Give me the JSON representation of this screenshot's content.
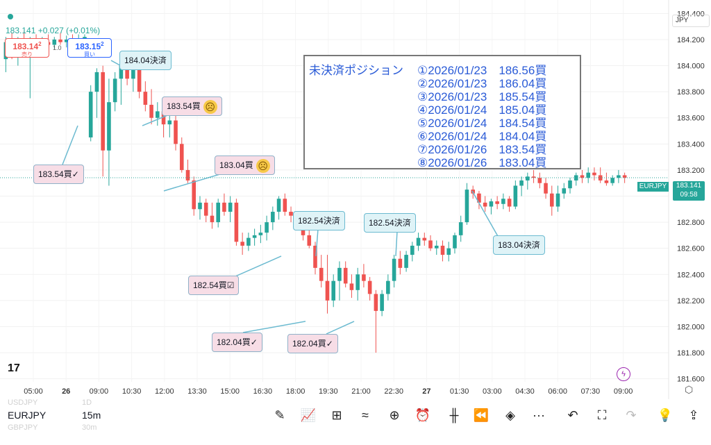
{
  "quote": {
    "price_change": "183.141 +0.027 (+0.01%)"
  },
  "trade": {
    "sell_price_main": "183.14",
    "sell_price_small": "2",
    "sell_label": "売り",
    "spread": "1.0",
    "buy_price_main": "183.15",
    "buy_price_small": "2",
    "buy_label": "買い"
  },
  "axis": {
    "currency": "JPY",
    "y_ticks": [
      "184.400",
      "184.200",
      "184.000",
      "183.800",
      "183.600",
      "183.400",
      "183.200",
      "183.000",
      "182.800",
      "182.600",
      "182.400",
      "182.200",
      "182.000",
      "181.800",
      "181.600"
    ],
    "x_ticks": [
      "05:00",
      "26",
      "09:00",
      "10:30",
      "12:00",
      "13:30",
      "15:00",
      "16:30",
      "18:00",
      "19:30",
      "21:00",
      "22:30",
      "27",
      "01:30",
      "03:00",
      "04:30",
      "06:00",
      "07:30",
      "09:00"
    ],
    "symbol_badge": "EURJPY",
    "last_price": "183.141",
    "countdown": "09:58"
  },
  "chart_data": {
    "type": "candlestick",
    "symbol": "EURJPY",
    "interval": "15m",
    "ylim": [
      181.55,
      184.45
    ],
    "last_price": 183.141,
    "candles": [
      [
        184.05,
        184.22,
        183.95,
        184.18
      ],
      [
        184.18,
        184.25,
        184.05,
        184.1
      ],
      [
        184.1,
        184.22,
        184.0,
        184.2
      ],
      [
        184.2,
        184.26,
        184.12,
        184.15
      ],
      [
        184.15,
        184.22,
        183.75,
        184.2
      ],
      [
        184.2,
        184.24,
        184.12,
        184.15
      ],
      [
        184.15,
        184.22,
        184.1,
        184.18
      ],
      [
        184.18,
        184.24,
        184.12,
        184.16
      ],
      [
        184.16,
        184.22,
        184.13,
        184.2
      ],
      [
        184.2,
        184.25,
        184.16,
        184.18
      ],
      [
        184.18,
        184.23,
        184.14,
        184.2
      ],
      [
        184.2,
        184.24,
        184.16,
        184.18
      ],
      [
        184.18,
        184.24,
        184.14,
        184.2
      ],
      [
        184.2,
        184.24,
        184.16,
        184.22
      ],
      [
        183.45,
        183.85,
        183.42,
        183.8
      ],
      [
        183.8,
        183.98,
        183.6,
        183.95
      ],
      [
        183.95,
        184.0,
        183.15,
        183.35
      ],
      [
        183.35,
        183.9,
        183.08,
        183.72
      ],
      [
        183.72,
        183.95,
        183.65,
        183.9
      ],
      [
        183.9,
        184.05,
        183.7,
        184.0
      ],
      [
        184.0,
        184.05,
        183.85,
        183.9
      ],
      [
        183.9,
        184.05,
        183.8,
        184.02
      ],
      [
        184.02,
        184.05,
        183.75,
        183.8
      ],
      [
        183.8,
        183.88,
        183.65,
        183.7
      ],
      [
        183.7,
        183.82,
        183.55,
        183.6
      ],
      [
        183.6,
        183.72,
        183.54,
        183.65
      ],
      [
        183.65,
        183.7,
        183.45,
        183.55
      ],
      [
        183.55,
        183.62,
        183.45,
        183.58
      ],
      [
        183.58,
        183.62,
        183.35,
        183.4
      ],
      [
        183.4,
        183.45,
        183.18,
        183.2
      ],
      [
        183.2,
        183.28,
        183.1,
        183.12
      ],
      [
        183.12,
        183.15,
        182.85,
        182.9
      ],
      [
        182.9,
        183.0,
        182.82,
        182.95
      ],
      [
        182.95,
        182.98,
        182.8,
        182.85
      ],
      [
        182.85,
        182.95,
        182.75,
        182.8
      ],
      [
        182.8,
        182.98,
        182.76,
        182.95
      ],
      [
        182.95,
        183.02,
        182.85,
        182.88
      ],
      [
        182.88,
        183.0,
        182.8,
        182.95
      ],
      [
        182.95,
        182.98,
        182.62,
        182.65
      ],
      [
        182.65,
        182.72,
        182.55,
        182.62
      ],
      [
        182.62,
        182.72,
        182.58,
        182.68
      ],
      [
        182.68,
        182.75,
        182.62,
        182.7
      ],
      [
        182.7,
        182.78,
        182.64,
        182.72
      ],
      [
        182.72,
        182.85,
        182.66,
        182.8
      ],
      [
        182.8,
        182.92,
        182.74,
        182.88
      ],
      [
        182.88,
        183.0,
        182.82,
        182.98
      ],
      [
        182.98,
        183.02,
        182.85,
        182.88
      ],
      [
        182.88,
        182.92,
        182.8,
        182.85
      ],
      [
        182.85,
        182.88,
        182.76,
        182.78
      ],
      [
        182.78,
        182.82,
        182.66,
        182.7
      ],
      [
        182.7,
        182.74,
        182.6,
        182.62
      ],
      [
        182.62,
        182.65,
        182.4,
        182.45
      ],
      [
        182.45,
        182.55,
        182.3,
        182.35
      ],
      [
        182.35,
        182.55,
        182.1,
        182.2
      ],
      [
        182.2,
        182.4,
        182.15,
        182.35
      ],
      [
        182.35,
        182.5,
        182.2,
        182.45
      ],
      [
        182.45,
        182.5,
        182.3,
        182.33
      ],
      [
        182.33,
        182.4,
        182.22,
        182.28
      ],
      [
        182.28,
        182.45,
        182.2,
        182.4
      ],
      [
        182.4,
        182.48,
        182.3,
        182.35
      ],
      [
        182.35,
        182.38,
        182.2,
        182.25
      ],
      [
        182.25,
        182.28,
        181.8,
        182.12
      ],
      [
        182.12,
        182.28,
        182.08,
        182.25
      ],
      [
        182.25,
        182.4,
        182.2,
        182.35
      ],
      [
        182.35,
        182.55,
        182.3,
        182.52
      ],
      [
        182.52,
        182.58,
        182.4,
        182.45
      ],
      [
        182.45,
        182.58,
        182.42,
        182.55
      ],
      [
        182.55,
        182.65,
        182.5,
        182.62
      ],
      [
        182.62,
        182.72,
        182.58,
        182.68
      ],
      [
        182.68,
        182.72,
        182.62,
        182.66
      ],
      [
        182.66,
        182.7,
        182.58,
        182.6
      ],
      [
        182.6,
        182.66,
        182.55,
        182.62
      ],
      [
        182.62,
        182.66,
        182.5,
        182.55
      ],
      [
        182.55,
        182.65,
        182.5,
        182.6
      ],
      [
        182.6,
        182.72,
        182.56,
        182.7
      ],
      [
        182.7,
        182.85,
        182.65,
        182.8
      ],
      [
        182.8,
        183.1,
        182.78,
        183.05
      ],
      [
        183.05,
        183.08,
        182.98,
        183.02
      ],
      [
        183.02,
        183.04,
        182.9,
        182.95
      ],
      [
        182.95,
        183.0,
        182.88,
        182.92
      ],
      [
        182.92,
        182.98,
        182.86,
        182.96
      ],
      [
        182.96,
        183.0,
        182.9,
        182.94
      ],
      [
        182.94,
        183.02,
        182.9,
        182.98
      ],
      [
        182.98,
        183.0,
        182.88,
        182.92
      ],
      [
        182.92,
        183.12,
        182.9,
        183.08
      ],
      [
        183.08,
        183.15,
        183.0,
        183.12
      ],
      [
        183.12,
        183.18,
        183.05,
        183.15
      ],
      [
        183.15,
        183.2,
        183.1,
        183.14
      ],
      [
        183.14,
        183.18,
        183.06,
        183.1
      ],
      [
        183.1,
        183.14,
        182.98,
        183.02
      ],
      [
        183.02,
        183.08,
        182.85,
        182.92
      ],
      [
        182.92,
        183.08,
        182.88,
        183.02
      ],
      [
        183.02,
        183.1,
        182.98,
        183.06
      ],
      [
        183.06,
        183.14,
        183.02,
        183.12
      ],
      [
        183.12,
        183.18,
        183.08,
        183.16
      ],
      [
        183.16,
        183.2,
        183.1,
        183.14
      ],
      [
        183.14,
        183.22,
        183.1,
        183.18
      ],
      [
        183.18,
        183.22,
        183.12,
        183.16
      ],
      [
        183.16,
        183.22,
        183.1,
        183.12
      ],
      [
        183.12,
        183.18,
        183.08,
        183.1
      ],
      [
        183.1,
        183.16,
        183.08,
        183.14
      ],
      [
        183.14,
        183.2,
        183.1,
        183.16
      ],
      [
        183.16,
        183.18,
        183.1,
        183.141
      ]
    ]
  },
  "annotations": [
    {
      "text": "184.04決済",
      "style": "blue"
    },
    {
      "text": "183.54買",
      "style": "pink",
      "emoji": "☹"
    },
    {
      "text": "183.54買✓",
      "style": "pink"
    },
    {
      "text": "183.04買",
      "style": "pink",
      "emoji": "☹"
    },
    {
      "text": "182.54決済",
      "style": "blue"
    },
    {
      "text": "182.54決済",
      "style": "blue"
    },
    {
      "text": "183.04決済",
      "style": "blue"
    },
    {
      "text": "182.54買☑",
      "style": "pink"
    },
    {
      "text": "182.04買✓",
      "style": "pink"
    },
    {
      "text": "182.04買✓",
      "style": "pink"
    }
  ],
  "positions": {
    "title": "未決済ポジション",
    "rows": [
      "①2026/01/23　186.56買",
      "②2026/01/23　186.04買",
      "③2026/01/23　185.54買",
      "④2026/01/24　185.04買",
      "⑤2026/01/24　184.54買",
      "⑥2026/01/24　184.04買",
      "⑦2026/01/26　183.54買",
      "⑧2026/01/26　183.04買"
    ]
  },
  "bottom": {
    "symbol_above": "USDJPY",
    "interval_above": "1D",
    "symbol": "EURJPY",
    "interval": "15m",
    "symbol_below": "GBPJPY",
    "interval_below": "30m"
  },
  "colors": {
    "up": "#26a69a",
    "down": "#ef5350",
    "accent": "#2962ff"
  },
  "icons": [
    "pen-icon",
    "indicators-icon",
    "templates-icon",
    "drawing-tools-icon",
    "add-icon",
    "alert-icon",
    "bar-style-icon",
    "replay-icon",
    "layers-icon",
    "more-icon",
    "undo-icon",
    "fullscreen-icon",
    "redo-icon",
    "ideas-icon",
    "share-icon"
  ]
}
